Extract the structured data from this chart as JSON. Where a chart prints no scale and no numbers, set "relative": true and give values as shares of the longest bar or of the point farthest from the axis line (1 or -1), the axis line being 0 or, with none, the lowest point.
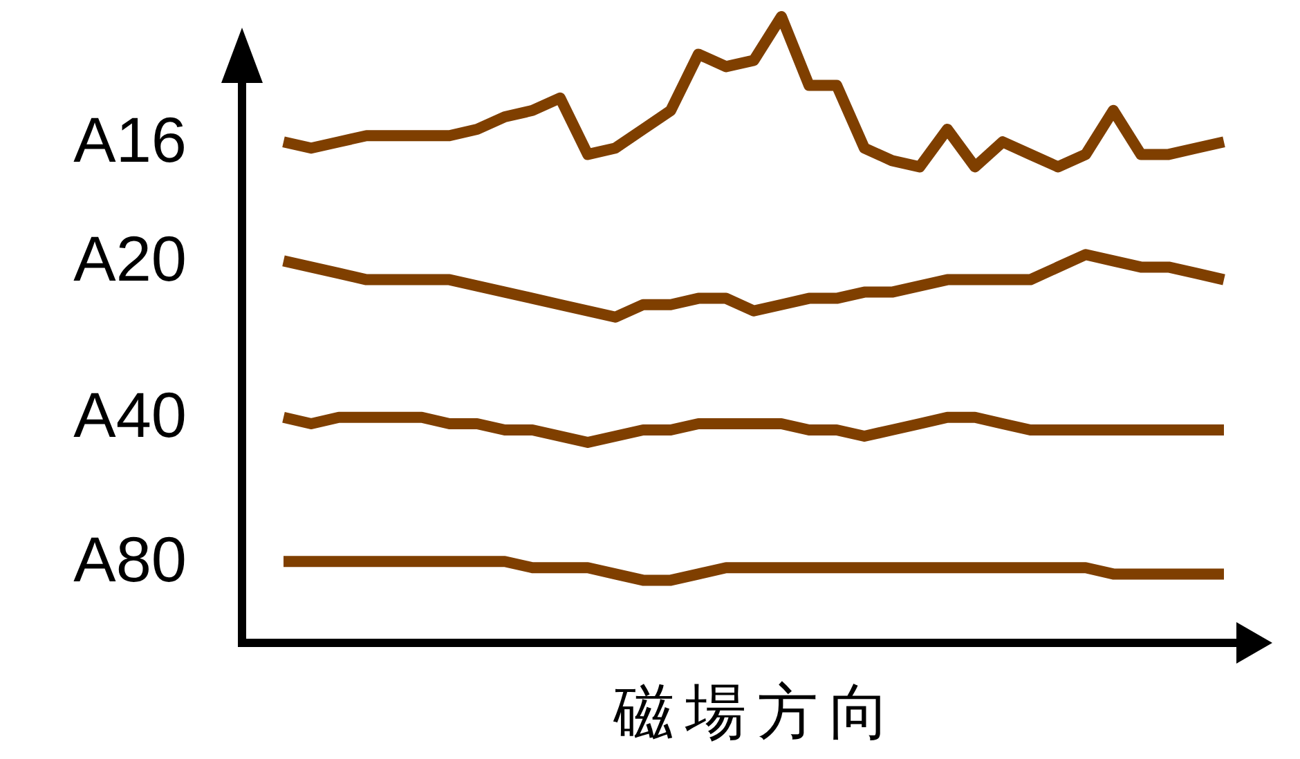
{
  "chart_data": {
    "type": "line",
    "relative": true,
    "xlabel": "磁場方向",
    "categories": [
      null,
      null,
      null,
      null,
      null,
      null,
      null,
      null,
      null,
      null,
      null,
      null,
      null,
      null,
      null,
      null,
      null,
      null,
      null,
      null,
      null,
      null,
      null,
      null,
      null,
      null,
      null,
      null,
      null,
      null,
      null,
      null,
      null,
      null,
      null
    ],
    "series": [
      {
        "name": "A16",
        "color": "#7f3f00",
        "values": [
          0.8,
          0.79,
          0.8,
          0.81,
          0.81,
          0.81,
          0.81,
          0.82,
          0.84,
          0.85,
          0.87,
          0.78,
          0.79,
          0.82,
          0.85,
          0.94,
          0.92,
          0.93,
          1.0,
          0.89,
          0.89,
          0.79,
          0.77,
          0.76,
          0.82,
          0.76,
          0.8,
          0.78,
          0.76,
          0.78,
          0.85,
          0.78,
          0.78,
          0.79,
          0.8
        ]
      },
      {
        "name": "A20",
        "color": "#7f3f00",
        "values": [
          0.61,
          0.6,
          0.59,
          0.58,
          0.58,
          0.58,
          0.58,
          0.57,
          0.56,
          0.55,
          0.54,
          0.53,
          0.52,
          0.54,
          0.54,
          0.55,
          0.55,
          0.53,
          0.54,
          0.55,
          0.55,
          0.56,
          0.56,
          0.57,
          0.58,
          0.58,
          0.58,
          0.58,
          0.6,
          0.62,
          0.61,
          0.6,
          0.6,
          0.59,
          0.58
        ]
      },
      {
        "name": "A40",
        "color": "#7f3f00",
        "values": [
          0.36,
          0.35,
          0.36,
          0.36,
          0.36,
          0.36,
          0.35,
          0.35,
          0.34,
          0.34,
          0.33,
          0.32,
          0.33,
          0.34,
          0.34,
          0.35,
          0.35,
          0.35,
          0.35,
          0.34,
          0.34,
          0.33,
          0.34,
          0.35,
          0.36,
          0.36,
          0.35,
          0.34,
          0.34,
          0.34,
          0.34,
          0.34,
          0.34,
          0.34,
          0.34
        ]
      },
      {
        "name": "A80",
        "color": "#7f3f00",
        "values": [
          0.13,
          0.13,
          0.13,
          0.13,
          0.13,
          0.13,
          0.13,
          0.13,
          0.13,
          0.12,
          0.12,
          0.12,
          0.11,
          0.1,
          0.1,
          0.11,
          0.12,
          0.12,
          0.12,
          0.12,
          0.12,
          0.12,
          0.12,
          0.12,
          0.12,
          0.12,
          0.12,
          0.12,
          0.12,
          0.12,
          0.11,
          0.11,
          0.11,
          0.11,
          0.11
        ]
      }
    ]
  }
}
